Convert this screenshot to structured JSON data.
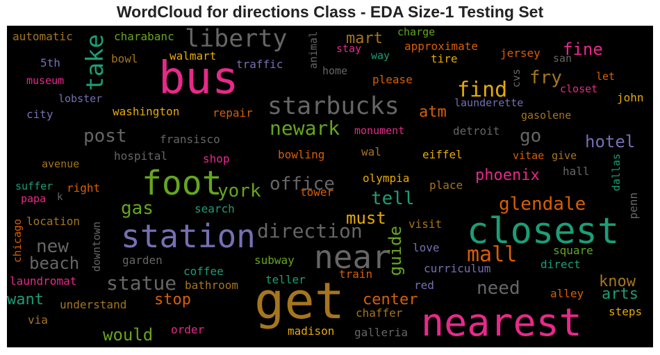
{
  "title": "WordCloud for directions Class - EDA Size-1 Testing Set",
  "colors": {
    "magenta": "#e7298a",
    "teal": "#1b9e77",
    "orange": "#d95f02",
    "purple": "#7570b3",
    "green": "#66a61e",
    "gold": "#e6ab02",
    "brown": "#a6761d",
    "gray": "#666666"
  },
  "words": [
    "bus",
    "get",
    "nearest",
    "closest",
    "station",
    "foot",
    "near",
    "starbucks",
    "liberty",
    "take",
    "find",
    "newark",
    "direction",
    "mall",
    "glendale",
    "post",
    "statue",
    "new",
    "beach",
    "gas",
    "york",
    "office",
    "tell",
    "must",
    "guide",
    "go",
    "hotel",
    "fine",
    "fry",
    "mart",
    "atm",
    "phoenix",
    "need",
    "know",
    "arts",
    "stop",
    "center",
    "would",
    "want",
    "automatic",
    "charabanc",
    "charge",
    "approximate",
    "jersey",
    "san",
    "stay",
    "way",
    "tire",
    "animal",
    "home",
    "5th",
    "bowl",
    "walmart",
    "traffic",
    "museum",
    "please",
    "cvs",
    "let",
    "closet",
    "lobster",
    "launderette",
    "john",
    "city",
    "washington",
    "repair",
    "gasolene",
    "monument",
    "detroit",
    "fransisco",
    "hospital",
    "shop",
    "bowling",
    "wal",
    "eiffel",
    "vitae",
    "give",
    "avenue",
    "hall",
    "dallas",
    "suffer",
    "right",
    "olympia",
    "place",
    "papa",
    "k",
    "tower",
    "search",
    "penn",
    "location",
    "chicago",
    "downtown",
    "visit",
    "love",
    "square",
    "garden",
    "subway",
    "curriculum",
    "direct",
    "laundromat",
    "coffee",
    "train",
    "bathroom",
    "teller",
    "red",
    "alley",
    "understand",
    "via",
    "order",
    "madison",
    "chaffer",
    "galleria",
    "steps"
  ]
}
